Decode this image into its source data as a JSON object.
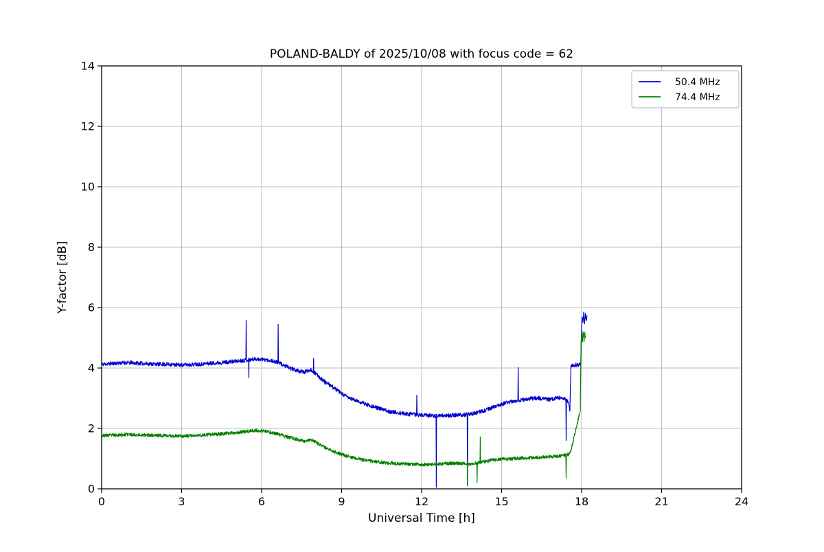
{
  "chart_data": {
    "type": "line",
    "title": "POLAND-BALDY of 2025/10/08 with focus code = 62",
    "xlabel": "Universal Time [h]",
    "ylabel": "Y-factor [dB]",
    "xlim": [
      0,
      24
    ],
    "ylim": [
      0,
      14
    ],
    "xticks": [
      0,
      3,
      6,
      9,
      12,
      15,
      18,
      21,
      24
    ],
    "yticks": [
      0,
      2,
      4,
      6,
      8,
      10,
      12,
      14
    ],
    "grid": true,
    "legend_position": "upper right",
    "background_color": "#ffffff",
    "series": [
      {
        "name": "50.4 MHz",
        "color": "#0000cc",
        "noise": 0.065,
        "seed": 11,
        "trend": [
          [
            0,
            4.12
          ],
          [
            0.5,
            4.16
          ],
          [
            1,
            4.18
          ],
          [
            1.5,
            4.15
          ],
          [
            2,
            4.13
          ],
          [
            2.5,
            4.12
          ],
          [
            3,
            4.1
          ],
          [
            3.5,
            4.12
          ],
          [
            4,
            4.15
          ],
          [
            4.5,
            4.18
          ],
          [
            5,
            4.22
          ],
          [
            5.4,
            4.26
          ],
          [
            5.8,
            4.3
          ],
          [
            6.1,
            4.28
          ],
          [
            6.4,
            4.24
          ],
          [
            6.7,
            4.15
          ],
          [
            7.0,
            4.02
          ],
          [
            7.3,
            3.92
          ],
          [
            7.6,
            3.86
          ],
          [
            7.85,
            3.95
          ],
          [
            8.1,
            3.75
          ],
          [
            8.4,
            3.52
          ],
          [
            8.7,
            3.35
          ],
          [
            9.0,
            3.15
          ],
          [
            9.3,
            3.0
          ],
          [
            9.6,
            2.9
          ],
          [
            10.0,
            2.78
          ],
          [
            10.4,
            2.66
          ],
          [
            10.8,
            2.56
          ],
          [
            11.2,
            2.5
          ],
          [
            11.6,
            2.47
          ],
          [
            12.0,
            2.44
          ],
          [
            12.4,
            2.42
          ],
          [
            12.8,
            2.42
          ],
          [
            13.2,
            2.44
          ],
          [
            13.6,
            2.45
          ],
          [
            14.0,
            2.5
          ],
          [
            14.4,
            2.6
          ],
          [
            14.8,
            2.74
          ],
          [
            15.2,
            2.86
          ],
          [
            15.6,
            2.92
          ],
          [
            16.0,
            2.98
          ],
          [
            16.4,
            3.0
          ],
          [
            16.8,
            2.96
          ],
          [
            17.1,
            3.02
          ],
          [
            17.35,
            2.98
          ],
          [
            17.5,
            2.88
          ],
          [
            17.56,
            2.62
          ],
          [
            17.6,
            4.08
          ],
          [
            17.8,
            4.1
          ],
          [
            17.97,
            4.12
          ],
          [
            18.0,
            5.45
          ],
          [
            18.02,
            5.72
          ],
          [
            18.05,
            5.48
          ],
          [
            18.08,
            5.8
          ],
          [
            18.11,
            5.52
          ],
          [
            18.14,
            5.76
          ],
          [
            18.17,
            5.58
          ],
          [
            18.2,
            5.7
          ]
        ],
        "spikes": [
          [
            5.42,
            5.58
          ],
          [
            5.52,
            3.68
          ],
          [
            6.62,
            5.45
          ],
          [
            7.95,
            4.32
          ],
          [
            11.82,
            3.1
          ],
          [
            12.55,
            0.05
          ],
          [
            13.72,
            0.1
          ],
          [
            15.62,
            4.02
          ],
          [
            17.42,
            1.6
          ]
        ]
      },
      {
        "name": "74.4 MHz",
        "color": "#008000",
        "noise": 0.055,
        "seed": 23,
        "trend": [
          [
            0,
            1.76
          ],
          [
            0.5,
            1.78
          ],
          [
            1,
            1.8
          ],
          [
            1.5,
            1.78
          ],
          [
            2,
            1.77
          ],
          [
            2.5,
            1.76
          ],
          [
            3,
            1.75
          ],
          [
            3.5,
            1.76
          ],
          [
            4,
            1.79
          ],
          [
            4.5,
            1.82
          ],
          [
            5,
            1.86
          ],
          [
            5.4,
            1.9
          ],
          [
            5.8,
            1.93
          ],
          [
            6.1,
            1.91
          ],
          [
            6.4,
            1.86
          ],
          [
            6.7,
            1.79
          ],
          [
            7.0,
            1.71
          ],
          [
            7.3,
            1.64
          ],
          [
            7.6,
            1.58
          ],
          [
            7.85,
            1.63
          ],
          [
            8.1,
            1.5
          ],
          [
            8.4,
            1.36
          ],
          [
            8.7,
            1.24
          ],
          [
            9.0,
            1.14
          ],
          [
            9.4,
            1.04
          ],
          [
            9.8,
            0.96
          ],
          [
            10.2,
            0.9
          ],
          [
            10.6,
            0.87
          ],
          [
            11.0,
            0.84
          ],
          [
            11.5,
            0.82
          ],
          [
            12.0,
            0.8
          ],
          [
            12.5,
            0.82
          ],
          [
            13.0,
            0.84
          ],
          [
            13.4,
            0.85
          ],
          [
            13.8,
            0.83
          ],
          [
            14.2,
            0.88
          ],
          [
            14.6,
            0.95
          ],
          [
            15.0,
            0.99
          ],
          [
            15.4,
            1.0
          ],
          [
            15.8,
            1.02
          ],
          [
            16.2,
            1.04
          ],
          [
            16.6,
            1.05
          ],
          [
            17.0,
            1.08
          ],
          [
            17.3,
            1.1
          ],
          [
            17.5,
            1.14
          ],
          [
            17.6,
            1.25
          ],
          [
            17.95,
            2.6
          ],
          [
            17.98,
            4.8
          ],
          [
            18.0,
            5.15
          ],
          [
            18.03,
            4.85
          ],
          [
            18.06,
            5.25
          ],
          [
            18.09,
            4.9
          ],
          [
            18.12,
            5.18
          ],
          [
            18.15,
            5.0
          ]
        ],
        "spikes": [
          [
            13.72,
            0.15
          ],
          [
            14.08,
            0.2
          ],
          [
            14.2,
            1.72
          ],
          [
            17.42,
            0.35
          ]
        ]
      }
    ]
  }
}
